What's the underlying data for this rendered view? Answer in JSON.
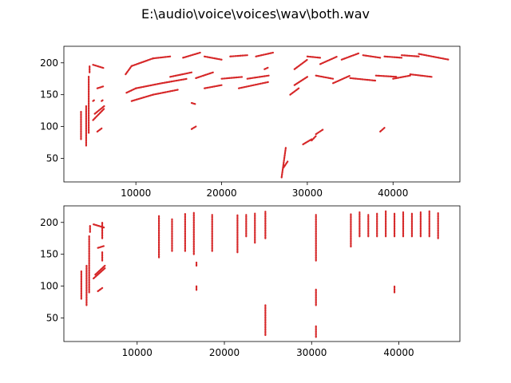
{
  "figure": {
    "title": "E:\\audio\\voice\\voices\\wav\\both.wav"
  },
  "chart_data": [
    {
      "type": "scatter",
      "title": "",
      "xlabel": "",
      "ylabel": "",
      "xlim": [
        1600,
        47800
      ],
      "ylim": [
        13,
        226
      ],
      "xticks": [
        10000,
        20000,
        30000,
        40000
      ],
      "yticks": [
        50,
        100,
        150,
        200
      ],
      "color": "#d62728",
      "segments": [
        [
          3600,
          80,
          3600,
          125
        ],
        [
          4200,
          70,
          4200,
          132
        ],
        [
          4500,
          90,
          4500,
          180
        ],
        [
          4600,
          185,
          4600,
          196
        ],
        [
          5000,
          110,
          6300,
          128
        ],
        [
          5200,
          120,
          6300,
          132
        ],
        [
          5500,
          92,
          6000,
          97
        ],
        [
          5500,
          160,
          6200,
          163
        ],
        [
          5000,
          197,
          6200,
          192
        ],
        [
          5000,
          140,
          5200,
          142
        ],
        [
          6000,
          140,
          6200,
          142
        ],
        [
          8800,
          182,
          9500,
          195
        ],
        [
          9500,
          195,
          12000,
          207
        ],
        [
          12000,
          207,
          14000,
          210
        ],
        [
          8900,
          153,
          10000,
          160
        ],
        [
          10000,
          160,
          13000,
          168
        ],
        [
          13000,
          168,
          16000,
          175
        ],
        [
          9500,
          140,
          12000,
          150
        ],
        [
          12000,
          150,
          15000,
          158
        ],
        [
          14000,
          178,
          16500,
          185
        ],
        [
          15500,
          208,
          17500,
          216
        ],
        [
          16500,
          137,
          17000,
          135
        ],
        [
          16500,
          96,
          17000,
          100
        ],
        [
          17000,
          176,
          19000,
          185
        ],
        [
          18000,
          160,
          20000,
          165
        ],
        [
          18000,
          210,
          20000,
          205
        ],
        [
          20000,
          175,
          22500,
          178
        ],
        [
          21000,
          210,
          23000,
          212
        ],
        [
          22000,
          160,
          25500,
          170
        ],
        [
          23000,
          175,
          25500,
          180
        ],
        [
          24000,
          210,
          26000,
          216
        ],
        [
          25000,
          190,
          25500,
          193
        ],
        [
          27000,
          20,
          27500,
          68
        ],
        [
          27200,
          35,
          27700,
          45
        ],
        [
          28000,
          150,
          29000,
          160
        ],
        [
          28500,
          165,
          30000,
          178
        ],
        [
          28500,
          190,
          30000,
          205
        ],
        [
          29500,
          72,
          30500,
          80
        ],
        [
          30500,
          78,
          31000,
          85
        ],
        [
          31000,
          88,
          31800,
          95
        ],
        [
          30000,
          210,
          31500,
          208
        ],
        [
          31000,
          180,
          33000,
          175
        ],
        [
          31500,
          198,
          33500,
          210
        ],
        [
          33000,
          168,
          35000,
          180
        ],
        [
          34000,
          205,
          36000,
          215
        ],
        [
          35000,
          176,
          38000,
          172
        ],
        [
          36500,
          212,
          38500,
          208
        ],
        [
          38500,
          92,
          39000,
          98
        ],
        [
          38000,
          180,
          40500,
          178
        ],
        [
          39000,
          210,
          41000,
          208
        ],
        [
          40000,
          175,
          42000,
          180
        ],
        [
          41000,
          212,
          43000,
          210
        ],
        [
          42000,
          182,
          44500,
          178
        ],
        [
          43000,
          214,
          46500,
          205
        ]
      ]
    },
    {
      "type": "scatter",
      "title": "",
      "xlabel": "",
      "ylabel": "",
      "xlim": [
        1600,
        47000
      ],
      "ylim": [
        13,
        226
      ],
      "xticks": [
        10000,
        20000,
        30000,
        40000
      ],
      "yticks": [
        50,
        100,
        150,
        200
      ],
      "color": "#d62728",
      "segments": [
        [
          3600,
          80,
          3600,
          125
        ],
        [
          4200,
          70,
          4200,
          132
        ],
        [
          4500,
          90,
          4500,
          180
        ],
        [
          4600,
          185,
          4600,
          196
        ],
        [
          5000,
          112,
          6300,
          128
        ],
        [
          5200,
          118,
          6300,
          132
        ],
        [
          5500,
          92,
          6000,
          97
        ],
        [
          5500,
          160,
          6200,
          163
        ],
        [
          5000,
          197,
          6200,
          192
        ],
        [
          6000,
          140,
          6000,
          155
        ],
        [
          6000,
          175,
          6000,
          200
        ],
        [
          12500,
          145,
          12500,
          210
        ],
        [
          14000,
          155,
          14000,
          205
        ],
        [
          15500,
          155,
          15500,
          215
        ],
        [
          16500,
          150,
          16500,
          215
        ],
        [
          16800,
          94,
          16800,
          101
        ],
        [
          16800,
          132,
          16800,
          137
        ],
        [
          18600,
          155,
          18600,
          212
        ],
        [
          21500,
          153,
          21500,
          212
        ],
        [
          22500,
          178,
          22500,
          212
        ],
        [
          23500,
          168,
          23500,
          214
        ],
        [
          24700,
          23,
          24700,
          70
        ],
        [
          24700,
          175,
          24700,
          217
        ],
        [
          30500,
          20,
          30500,
          38
        ],
        [
          30500,
          70,
          30500,
          95
        ],
        [
          30500,
          140,
          30500,
          212
        ],
        [
          34500,
          162,
          34500,
          214
        ],
        [
          35500,
          178,
          35500,
          216
        ],
        [
          36500,
          178,
          36500,
          212
        ],
        [
          37500,
          178,
          37500,
          214
        ],
        [
          38500,
          178,
          38500,
          218
        ],
        [
          39500,
          90,
          39500,
          100
        ],
        [
          39500,
          178,
          39500,
          214
        ],
        [
          40500,
          178,
          40500,
          216
        ],
        [
          41500,
          178,
          41500,
          214
        ],
        [
          42500,
          178,
          42500,
          216
        ],
        [
          43500,
          178,
          43500,
          218
        ],
        [
          44500,
          175,
          44500,
          215
        ]
      ]
    }
  ]
}
